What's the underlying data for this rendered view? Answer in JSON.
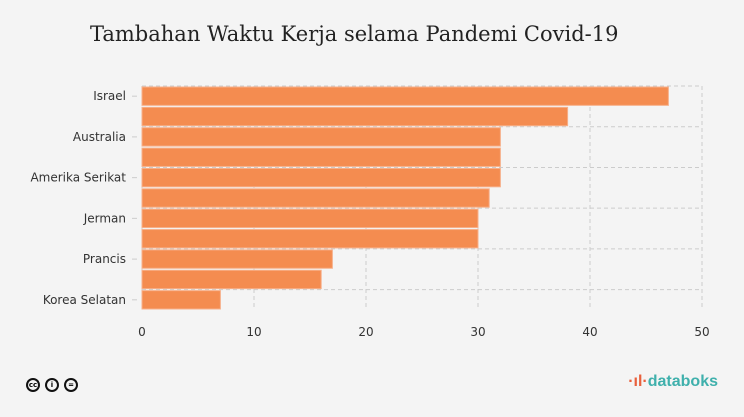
{
  "chart_data": {
    "type": "bar",
    "orientation": "horizontal",
    "title": "Tambahan Waktu Kerja selama Pandemi Covid-19",
    "categories": [
      "Israel",
      "",
      "Australia",
      "",
      "Amerika Serikat",
      "",
      "Jerman",
      "",
      "Prancis",
      "",
      "Korea Selatan"
    ],
    "values": [
      47,
      38,
      32,
      32,
      32,
      31,
      30,
      30,
      17,
      16,
      7
    ],
    "xlim": [
      0,
      50
    ],
    "xticks": [
      "0",
      "10",
      "20",
      "30",
      "40",
      "50"
    ],
    "xlabel": "",
    "ylabel": "",
    "grid": true,
    "bar_color": "#f48c50"
  },
  "footer": {
    "brand": "databoks",
    "license": "cc-by-nd"
  }
}
